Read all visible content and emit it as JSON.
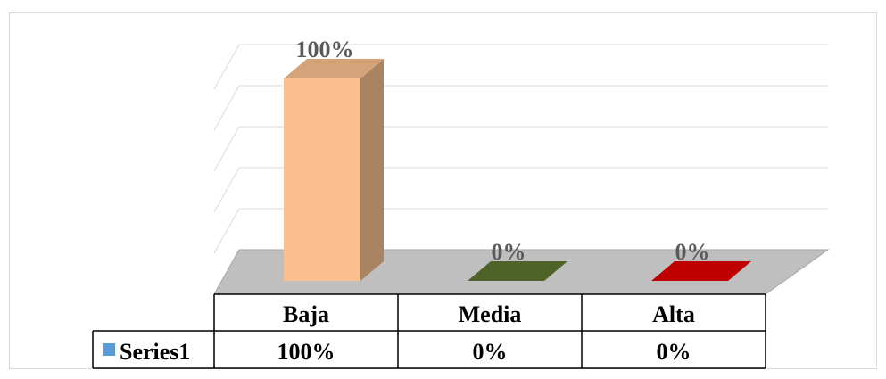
{
  "chart_data": {
    "type": "bar",
    "title": "",
    "categories": [
      "Baja",
      "Media",
      "Alta"
    ],
    "series": [
      {
        "name": "Series1",
        "values": [
          100,
          0,
          0
        ],
        "labels": [
          "100%",
          "0%",
          "0%"
        ],
        "colors": [
          "#fac090",
          "#4f6228",
          "#c00000"
        ],
        "legend_color": "#5b9bd5"
      }
    ],
    "ylim": [
      0,
      100
    ],
    "grid": true,
    "legend": "data-table",
    "data_table": true
  }
}
